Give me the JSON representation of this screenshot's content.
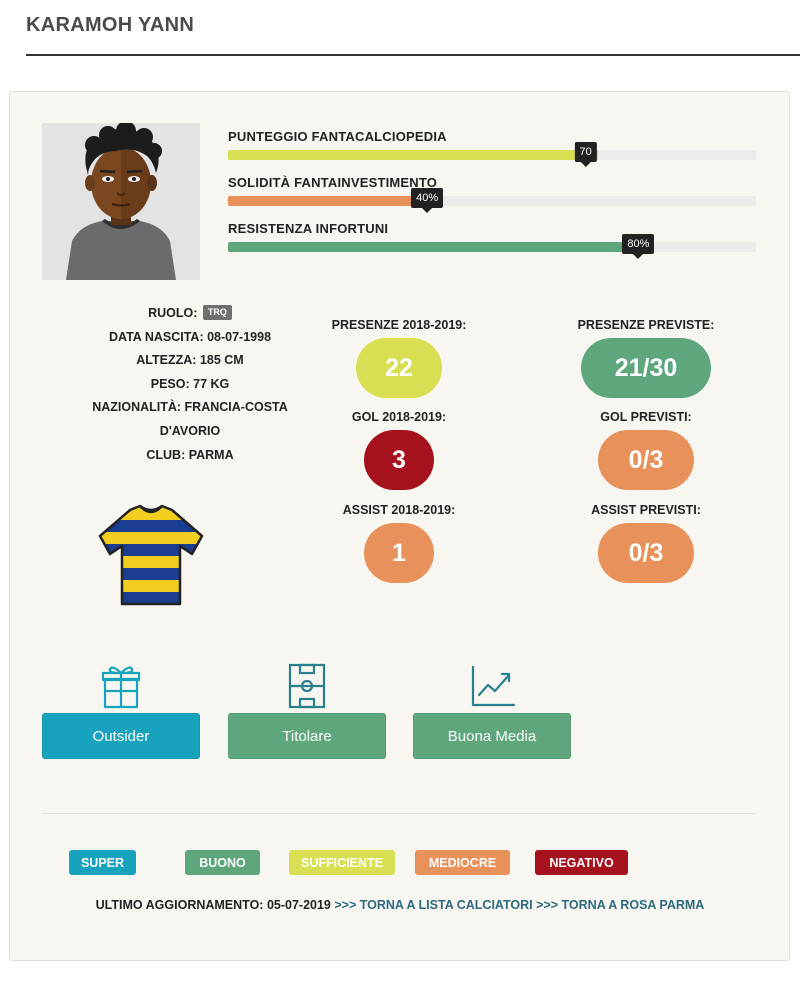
{
  "player": {
    "name": "KARAMOH YANN"
  },
  "meters": [
    {
      "label": "PUNTEGGIO FANTACALCIOPEDIA",
      "value": 70,
      "display": "70",
      "color": "#d9df52"
    },
    {
      "label": "SOLIDITÀ FANTAINVESTIMENTO",
      "value": 40,
      "display": "40%",
      "color": "#e8915a"
    },
    {
      "label": "RESISTENZA INFORTUNI",
      "value": 80,
      "display": "80%",
      "color": "#5ea77c"
    }
  ],
  "info": {
    "role_label": "RUOLO:",
    "role_value": "TRQ",
    "birth": "DATA NASCITA: 08-07-1998",
    "height": "ALTEZZA: 185 CM",
    "weight": "PESO: 77 KG",
    "nationality_line1": "NAZIONALITÀ: FRANCIA-COSTA",
    "nationality_line2": "D'AVORIO",
    "club": "CLUB: PARMA"
  },
  "stats": {
    "season": [
      {
        "label": "PRESENZE 2018-2019:",
        "value": "22",
        "color": "#d9df52"
      },
      {
        "label": "GOL 2018-2019:",
        "value": "3",
        "color": "#a5121d"
      },
      {
        "label": "ASSIST 2018-2019:",
        "value": "1",
        "color": "#e8915a"
      }
    ],
    "forecast": [
      {
        "label": "PRESENZE PREVISTE:",
        "value": "21/30",
        "color": "#5ea77c"
      },
      {
        "label": "GOL PREVISTI:",
        "value": "0/3",
        "color": "#e8915a"
      },
      {
        "label": "ASSIST PREVISTI:",
        "value": "0/3",
        "color": "#e8915a"
      }
    ]
  },
  "tags": [
    {
      "label": "Outsider",
      "icon": "gift-icon",
      "color": "#17a3bd"
    },
    {
      "label": "Titolare",
      "icon": "football-pitch-icon",
      "color": "#5ea77c"
    },
    {
      "label": "Buona Media",
      "icon": "line-chart-icon",
      "color": "#5ea77c"
    }
  ],
  "legend": [
    {
      "label": "SUPER",
      "color": "#17a3bd"
    },
    {
      "label": "BUONO",
      "color": "#5ea77c"
    },
    {
      "label": "SUFFICIENTE",
      "color": "#d9df52"
    },
    {
      "label": "MEDIOCRE",
      "color": "#e8915a"
    },
    {
      "label": "NEGATIVO",
      "color": "#a5121d"
    }
  ],
  "footer": {
    "updated": "ULTIMO AGGIORNAMENTO: 05-07-2019",
    "link_players": ">>> TORNA A LISTA CALCIATORI",
    "link_team": ">>> TORNA A ROSA PARMA"
  }
}
